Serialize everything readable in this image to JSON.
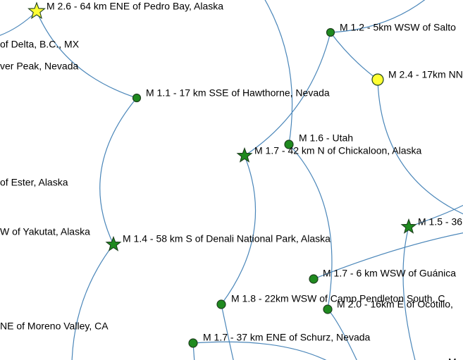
{
  "colors": {
    "link": "#4a86b9",
    "node_green": "#1f8a1f",
    "node_yellow": "#ffff33",
    "stroke_dark": "#1d3f1d",
    "stroke_yellow": "#b5a000"
  },
  "nodes": [
    {
      "id": "n1",
      "shape": "star",
      "color": "yellow",
      "label": "M 2.6 - 64 km ENE of Pedro Bay, Alaska"
    },
    {
      "id": "n2",
      "shape": "none",
      "label": "of Delta, B.C., MX"
    },
    {
      "id": "n3",
      "shape": "none",
      "label": "ver Peak, Nevada"
    },
    {
      "id": "n4",
      "shape": "circle",
      "color": "green",
      "label": "M 1.1 - 17 km SSE of Hawthorne, Nevada"
    },
    {
      "id": "n5",
      "shape": "circle",
      "color": "green",
      "label": "M 1.2 - 5km WSW of Salto"
    },
    {
      "id": "n6",
      "shape": "circle",
      "color": "yellow",
      "label": "M 2.4 - 17km NN"
    },
    {
      "id": "n7",
      "shape": "circle",
      "color": "green",
      "label": "M 1.6 - Utah"
    },
    {
      "id": "n8",
      "shape": "star",
      "color": "green",
      "label": "M 1.7 - 42 km N of Chickaloon, Alaska"
    },
    {
      "id": "n9",
      "shape": "none",
      "label": "of Ester, Alaska"
    },
    {
      "id": "n10",
      "shape": "none",
      "label": "W of Yakutat, Alaska"
    },
    {
      "id": "n11",
      "shape": "star",
      "color": "green",
      "label": "M 1.4 - 58 km S of Denali National Park, Alaska"
    },
    {
      "id": "n12",
      "shape": "star",
      "color": "green",
      "label": "M 1.5 - 36"
    },
    {
      "id": "n13",
      "shape": "circle",
      "color": "green",
      "label": "M 1.7 - 6 km WSW of Guánica"
    },
    {
      "id": "n14",
      "shape": "circle",
      "color": "green",
      "label": "M 1.8 - 22km WSW of Camp Pendleton South, C"
    },
    {
      "id": "n15",
      "shape": "circle",
      "color": "green",
      "label": "M 2.0 - 16km E of Ocotillo,"
    },
    {
      "id": "n16",
      "shape": "none",
      "label": "NE of Moreno Valley, CA"
    },
    {
      "id": "n17",
      "shape": "circle",
      "color": "green",
      "label": "M 1.7 - 37 km ENE of Schurz, Nevada"
    },
    {
      "id": "n18",
      "shape": "none",
      "label": "M"
    }
  ]
}
